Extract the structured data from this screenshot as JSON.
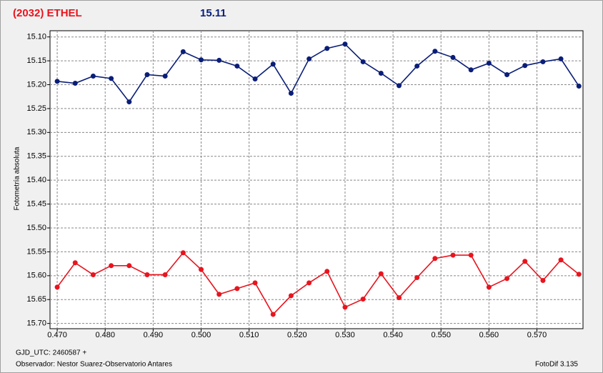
{
  "chart_data": {
    "type": "line",
    "title": "(2032) ETHEL",
    "subtitle": "15.11",
    "y_label": "Fotometría absoluta",
    "footer_left_1": "GJD_UTC: 2460587 +",
    "footer_left_2": "Observador: Nestor Suarez-Observatorio Antares",
    "footer_right": "FotoDif 3.135",
    "x": [
      0.47,
      0.47375,
      0.4775,
      0.48125,
      0.485,
      0.48875,
      0.4925,
      0.49625,
      0.5,
      0.50375,
      0.5075,
      0.51125,
      0.515,
      0.51875,
      0.5225,
      0.52625,
      0.53,
      0.53375,
      0.5375,
      0.54125,
      0.545,
      0.54875,
      0.5525,
      0.55625,
      0.56,
      0.56375,
      0.5675,
      0.57125,
      0.575,
      0.57875
    ],
    "series": [
      {
        "color": "#0a1e78",
        "values": [
          15.193,
          15.197,
          15.182,
          15.187,
          15.236,
          15.179,
          15.182,
          15.131,
          15.148,
          15.149,
          15.161,
          15.188,
          15.157,
          15.218,
          15.146,
          15.124,
          15.115,
          15.152,
          15.176,
          15.202,
          15.161,
          15.13,
          15.143,
          15.169,
          15.155,
          15.179,
          15.16,
          15.152,
          15.146,
          15.203
        ]
      },
      {
        "color": "#e8141e",
        "values": [
          15.624,
          15.573,
          15.598,
          15.579,
          15.579,
          15.598,
          15.598,
          15.552,
          15.587,
          15.639,
          15.627,
          15.615,
          15.681,
          15.642,
          15.615,
          15.591,
          15.666,
          15.649,
          15.596,
          15.646,
          15.604,
          15.564,
          15.557,
          15.557,
          15.624,
          15.606,
          15.57,
          15.61,
          15.567,
          15.597
        ]
      }
    ],
    "xlim": [
      0.4685,
      0.5796
    ],
    "ylim": [
      15.087,
      15.711
    ],
    "y_inverted": true,
    "grid": true,
    "xticks": [
      {
        "value": 0.47,
        "label": "0.470"
      },
      {
        "value": 0.48,
        "label": "0.480"
      },
      {
        "value": 0.49,
        "label": "0.490"
      },
      {
        "value": 0.5,
        "label": "0.500"
      },
      {
        "value": 0.51,
        "label": "0.510"
      },
      {
        "value": 0.52,
        "label": "0.520"
      },
      {
        "value": 0.53,
        "label": "0.530"
      },
      {
        "value": 0.54,
        "label": "0.540"
      },
      {
        "value": 0.55,
        "label": "0.550"
      },
      {
        "value": 0.56,
        "label": "0.560"
      },
      {
        "value": 0.57,
        "label": "0.570"
      }
    ],
    "yticks": [
      {
        "value": 15.1,
        "label": "15.10"
      },
      15.15,
      {
        "value": 15.2,
        "label": "15.20"
      },
      15.25,
      {
        "value": 15.3,
        "label": "15.30"
      },
      15.35,
      {
        "value": 15.4,
        "label": "15.40"
      },
      15.45,
      {
        "value": 15.5,
        "label": "15.50"
      },
      15.55,
      {
        "value": 15.6,
        "label": "15.60"
      },
      15.65,
      {
        "value": 15.7,
        "label": "15.70"
      }
    ]
  }
}
